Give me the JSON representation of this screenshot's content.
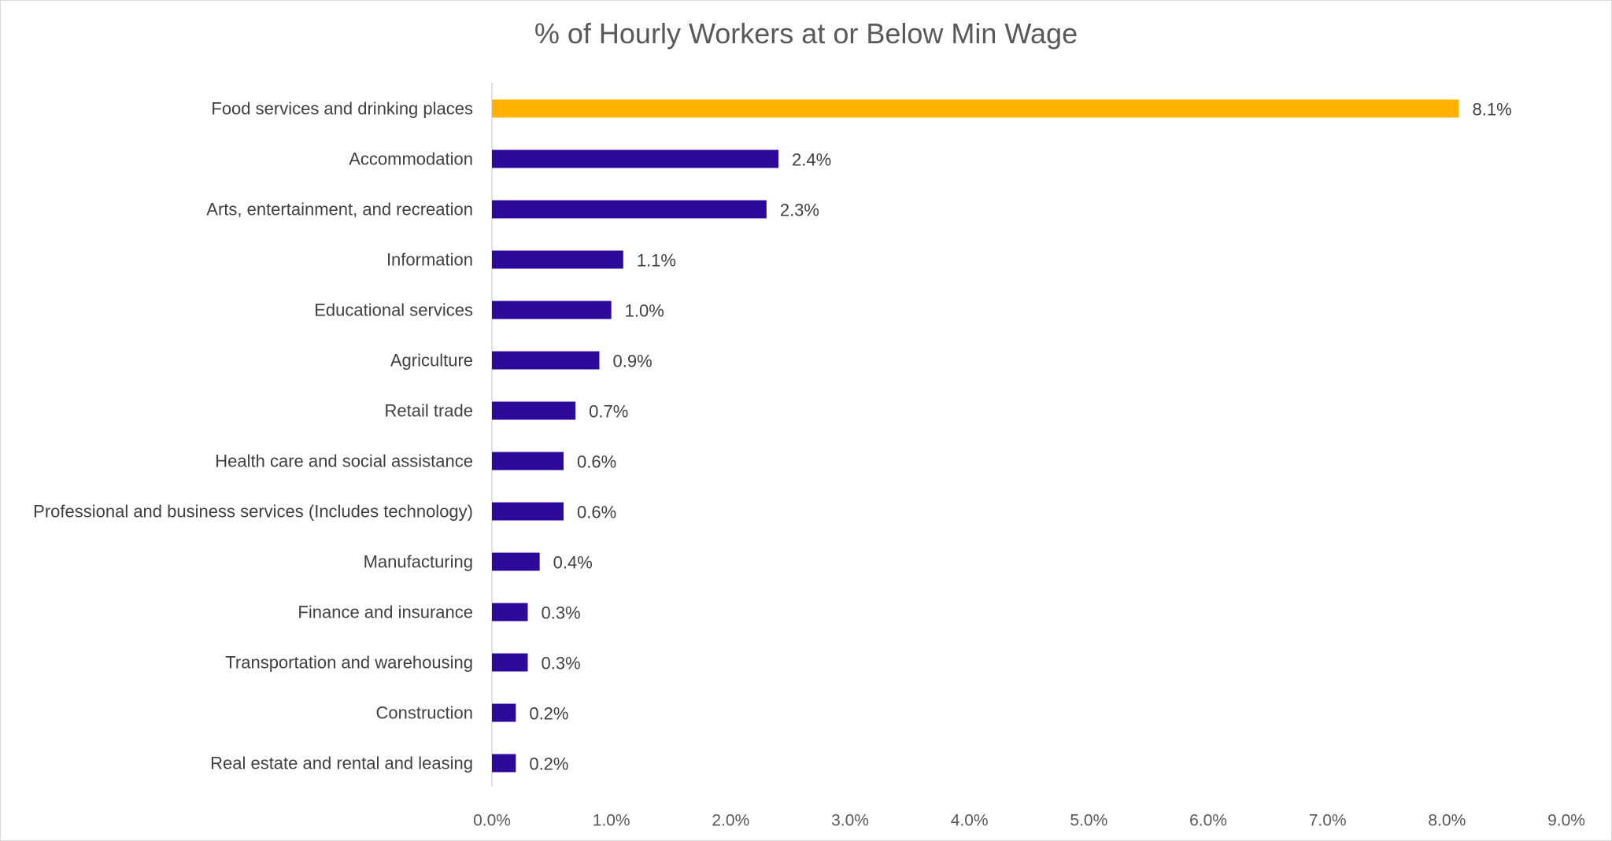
{
  "chart_data": {
    "type": "bar",
    "orientation": "horizontal",
    "title": "% of Hourly Workers at or Below Min Wage",
    "categories": [
      "Food services and drinking places",
      "Accommodation",
      "Arts, entertainment, and recreation",
      "Information",
      "Educational services",
      "Agriculture",
      "Retail trade",
      "Health care and social assistance",
      "Professional and business services (Includes technology)",
      "Manufacturing",
      "Finance and insurance",
      "Transportation and warehousing",
      "Construction",
      "Real estate and rental and leasing"
    ],
    "values": [
      8.1,
      2.4,
      2.3,
      1.1,
      1.0,
      0.9,
      0.7,
      0.6,
      0.6,
      0.4,
      0.3,
      0.3,
      0.2,
      0.2
    ],
    "value_labels": [
      "8.1%",
      "2.4%",
      "2.3%",
      "1.1%",
      "1.0%",
      "0.9%",
      "0.7%",
      "0.6%",
      "0.6%",
      "0.4%",
      "0.3%",
      "0.3%",
      "0.2%",
      "0.2%"
    ],
    "xlim": [
      0,
      9
    ],
    "x_ticks": [
      0,
      1,
      2,
      3,
      4,
      5,
      6,
      7,
      8,
      9
    ],
    "x_tick_labels": [
      "0.0%",
      "1.0%",
      "2.0%",
      "3.0%",
      "4.0%",
      "5.0%",
      "6.0%",
      "7.0%",
      "8.0%",
      "9.0%"
    ],
    "xlabel": "",
    "ylabel": "",
    "grid": false,
    "legend": "none",
    "highlight_index": 0,
    "colors": {
      "highlight": "#FFB300",
      "default": "#2E0A9A",
      "axis": "#d9d9d9"
    }
  }
}
